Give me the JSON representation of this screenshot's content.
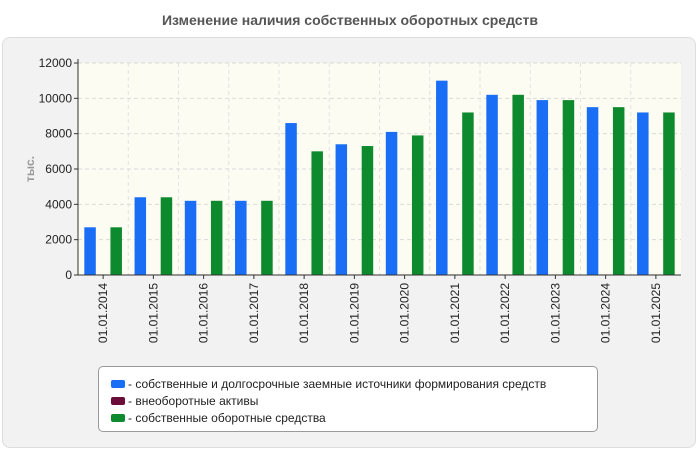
{
  "chart_data": {
    "type": "bar",
    "title": "Изменение наличия собственных оборотных средств",
    "ylabel": "тыс.",
    "xlabel": "",
    "ylim": [
      0,
      12000
    ],
    "yticks": [
      0,
      2000,
      4000,
      6000,
      8000,
      10000,
      12000
    ],
    "categories": [
      "01.01.2014",
      "01.01.2015",
      "01.01.2016",
      "01.01.2017",
      "01.01.2018",
      "01.01.2019",
      "01.01.2020",
      "01.01.2021",
      "01.01.2022",
      "01.01.2023",
      "01.01.2024",
      "01.01.2025"
    ],
    "series": [
      {
        "name": "- собственные и долгосрочные заемные источники формирования средств",
        "color": "#1a6ef5",
        "values": [
          2700,
          4400,
          4200,
          4200,
          8600,
          7400,
          8100,
          11000,
          10200,
          9900,
          9500,
          9200
        ]
      },
      {
        "name": "- внеоборотные активы",
        "color": "#6b0d3a",
        "values": [
          30,
          30,
          30,
          30,
          30,
          30,
          30,
          30,
          30,
          30,
          30,
          30
        ]
      },
      {
        "name": "- собственные оборотные средства",
        "color": "#0e8a2e",
        "values": [
          2700,
          4400,
          4200,
          4200,
          7000,
          7300,
          7900,
          9200,
          10200,
          9900,
          9500,
          9200
        ]
      }
    ],
    "grid": true,
    "legend_position": "bottom"
  }
}
